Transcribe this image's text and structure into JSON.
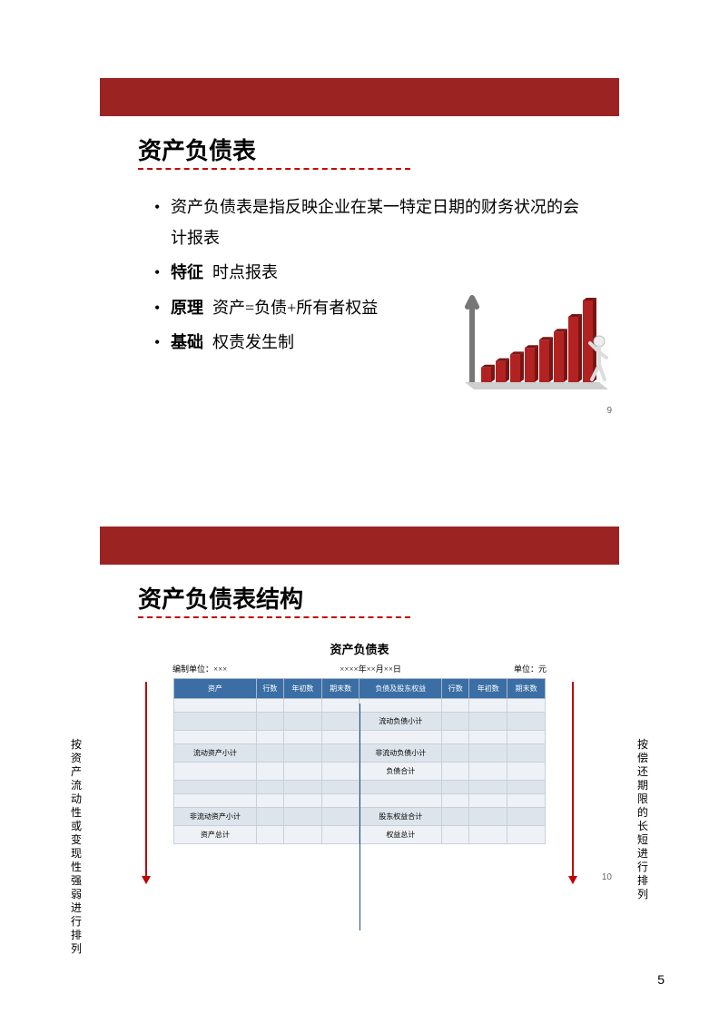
{
  "page_number": "5",
  "colors": {
    "brand_red": "#9b2423",
    "accent_red": "#c00000",
    "table_header": "#3a6ea5",
    "table_row_alt": "#dde4ec",
    "table_row": "#eef2f6",
    "table_border": "#c8d0da"
  },
  "slide1": {
    "title": "资产负债表",
    "title_underline_width": 300,
    "bullets": [
      {
        "label": "",
        "text": "资产负债表是指反映企业在某一特定日期的财务状况的会计报表"
      },
      {
        "label": "特征",
        "text": "时点报表"
      },
      {
        "label": "原理",
        "text": "资产=负债+所有者权益"
      },
      {
        "label": "基础",
        "text": "权责发生制"
      }
    ],
    "chart": {
      "type": "bar",
      "bar_count": 8,
      "heights_pct": [
        18,
        26,
        34,
        42,
        52,
        62,
        80,
        100
      ],
      "bar_color": "#b22222",
      "bar_shadow": "#7a1414",
      "axis_color": "#777777",
      "figure_color": "#eeeeee"
    },
    "slide_number": "9"
  },
  "slide2": {
    "title": "资产负债表结构",
    "title_underline_width": 300,
    "table_title": "资产负债表",
    "meta_left": "编制单位：×××",
    "meta_center": "××××年××月××日",
    "meta_right": "单位：元",
    "headers": [
      "资产",
      "行数",
      "年初数",
      "期末数",
      "负债及股东权益",
      "行数",
      "年初数",
      "期末数"
    ],
    "rows": [
      {
        "alt": false,
        "cells": [
          "",
          "",
          "",
          "",
          "",
          "",
          "",
          ""
        ]
      },
      {
        "alt": true,
        "cells": [
          "",
          "",
          "",
          "",
          "流动负债小计",
          "",
          "",
          ""
        ]
      },
      {
        "alt": false,
        "cells": [
          "",
          "",
          "",
          "",
          "",
          "",
          "",
          ""
        ]
      },
      {
        "alt": true,
        "cells": [
          "流动资产小计",
          "",
          "",
          "",
          "非流动负债小计",
          "",
          "",
          ""
        ]
      },
      {
        "alt": false,
        "cells": [
          "",
          "",
          "",
          "",
          "负债合计",
          "",
          "",
          ""
        ]
      },
      {
        "alt": true,
        "cells": [
          "",
          "",
          "",
          "",
          "",
          "",
          "",
          ""
        ]
      },
      {
        "alt": false,
        "cells": [
          "",
          "",
          "",
          "",
          "",
          "",
          "",
          ""
        ]
      },
      {
        "alt": true,
        "cells": [
          "非流动资产小计",
          "",
          "",
          "",
          "股东权益合计",
          "",
          "",
          ""
        ]
      },
      {
        "alt": false,
        "cells": [
          "资产总计",
          "",
          "",
          "",
          "权益总计",
          "",
          "",
          ""
        ]
      }
    ],
    "side_left_label": "按资产流动性或变现性强弱进行排列",
    "side_right_label": "按偿还期限的长短进行排列",
    "slide_number": "10"
  }
}
